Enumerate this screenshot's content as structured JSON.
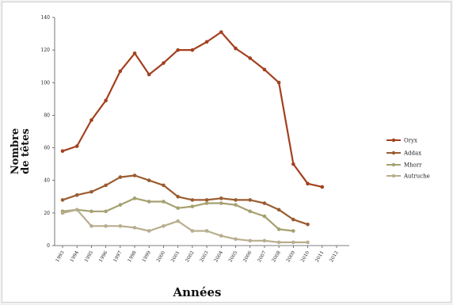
{
  "chart_data": {
    "type": "line",
    "xlabel": "Années",
    "ylabel_lines": [
      "Nombre",
      "de têtes"
    ],
    "ylim": [
      0,
      140
    ],
    "yticks": [
      0,
      20,
      40,
      60,
      80,
      100,
      120,
      140
    ],
    "grid": false,
    "legend_position": "right",
    "x": [
      "1993",
      "1994",
      "1995",
      "1996",
      "1997",
      "1998",
      "1999",
      "2000",
      "2001",
      "2002",
      "2003",
      "2004",
      "2005",
      "2006",
      "2007",
      "2008",
      "2009",
      "2010",
      "2011",
      "2012"
    ],
    "series": [
      {
        "name": "Oryx",
        "color": "#a3401f",
        "values": [
          58,
          61,
          77,
          89,
          107,
          118,
          105,
          112,
          120,
          120,
          125,
          131,
          121,
          115,
          108,
          100,
          50,
          38,
          36,
          null
        ]
      },
      {
        "name": "Addax",
        "color": "#9a5c30",
        "values": [
          28,
          31,
          33,
          37,
          42,
          43,
          40,
          37,
          30,
          28,
          28,
          29,
          28,
          28,
          26,
          22,
          16,
          13,
          null,
          null
        ]
      },
      {
        "name": "Mhorr",
        "color": "#a5a170",
        "values": [
          21,
          22,
          21,
          21,
          25,
          29,
          27,
          27,
          23,
          24,
          26,
          26,
          25,
          21,
          18,
          10,
          9,
          null,
          null,
          null
        ]
      },
      {
        "name": "Autruche",
        "color": "#b8ad8e",
        "values": [
          20,
          22,
          12,
          12,
          12,
          11,
          9,
          12,
          15,
          9,
          9,
          6,
          4,
          3,
          3,
          2,
          2,
          2,
          null,
          null
        ]
      }
    ]
  }
}
